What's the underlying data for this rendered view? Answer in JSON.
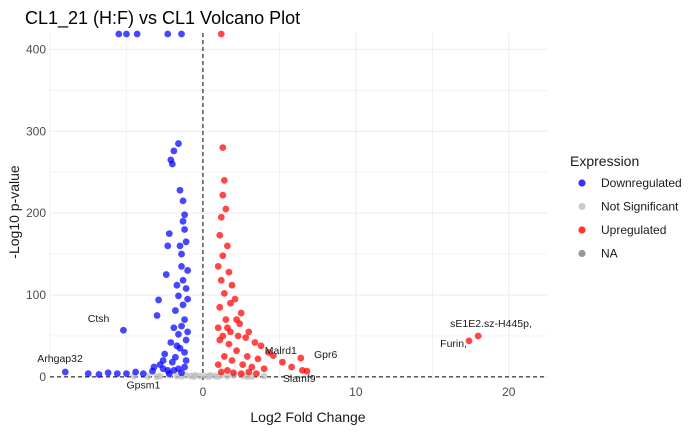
{
  "chart_data": {
    "type": "scatter",
    "title": "CL1_21 (H:F) vs CL1 Volcano Plot",
    "xlabel": "Log2 Fold Change",
    "ylabel": "-Log10 p-value",
    "xlim": [
      -10,
      22.5
    ],
    "ylim": [
      -5,
      420
    ],
    "xticks": [
      0,
      10,
      20
    ],
    "yticks": [
      0,
      100,
      200,
      300,
      400
    ],
    "grid": true,
    "vline": 0,
    "hline": 0,
    "legend": {
      "title": "Expression",
      "placement": "right",
      "entries": [
        {
          "label": "Downregulated",
          "color": "#0000ff"
        },
        {
          "label": "Not Significant",
          "color": "#bebebe"
        },
        {
          "label": "Upregulated",
          "color": "#ff0000"
        },
        {
          "label": "NA",
          "color": "#7f7f7f"
        }
      ]
    },
    "series": [
      {
        "name": "Downregulated",
        "color": "#0000ff",
        "points": [
          [
            -5.2,
            57
          ],
          [
            -9.0,
            6
          ],
          [
            -7.5,
            4
          ],
          [
            -6.8,
            3
          ],
          [
            -6.2,
            5
          ],
          [
            -5.6,
            4
          ],
          [
            -5.0,
            4
          ],
          [
            -4.4,
            6
          ],
          [
            -3.9,
            4
          ],
          [
            -3.3,
            7
          ],
          [
            -3.0,
            75
          ],
          [
            -2.9,
            94
          ],
          [
            -2.6,
            20
          ],
          [
            -2.4,
            125
          ],
          [
            -2.2,
            175
          ],
          [
            -2.3,
            160
          ],
          [
            -2.1,
            265
          ],
          [
            -2.0,
            260
          ],
          [
            -1.9,
            276
          ],
          [
            -1.6,
            285
          ],
          [
            -1.5,
            228
          ],
          [
            -1.3,
            215
          ],
          [
            -1.2,
            198
          ],
          [
            -1.5,
            160
          ],
          [
            -1.4,
            150
          ],
          [
            -1.2,
            180
          ],
          [
            -1.7,
            112
          ],
          [
            -1.6,
            99
          ],
          [
            -1.8,
            81
          ],
          [
            -1.4,
            135
          ],
          [
            -1.3,
            118
          ],
          [
            -1.1,
            108
          ],
          [
            -1.9,
            60
          ],
          [
            -1.6,
            52
          ],
          [
            -2.1,
            42
          ],
          [
            -2.5,
            28
          ],
          [
            -2.8,
            15
          ],
          [
            -3.2,
            12
          ],
          [
            -1.3,
            88
          ],
          [
            -1.2,
            70
          ],
          [
            -1.1,
            45
          ],
          [
            -1.5,
            35
          ],
          [
            -1.8,
            24
          ],
          [
            -2.0,
            18
          ],
          [
            -1.4,
            62
          ],
          [
            -1.2,
            30
          ],
          [
            -1.1,
            20
          ],
          [
            -1.7,
            38
          ],
          [
            -2.3,
            8
          ],
          [
            -2.6,
            10
          ],
          [
            -1.0,
            95
          ],
          [
            -1.0,
            130
          ],
          [
            -1.1,
            165
          ],
          [
            -1.3,
            190
          ],
          [
            -1.0,
            55
          ],
          [
            -1.2,
            12
          ],
          [
            -1.6,
            10
          ],
          [
            -1.9,
            8
          ],
          [
            -2.2,
            4
          ],
          [
            -1.4,
            5
          ],
          [
            -5.5,
            420
          ],
          [
            -5.0,
            420
          ],
          [
            -4.3,
            420
          ],
          [
            -2.3,
            420
          ],
          [
            -1.4,
            420
          ]
        ]
      },
      {
        "name": "Not Significant",
        "color": "#bebebe",
        "points": [
          [
            -4.5,
            1
          ],
          [
            -3.6,
            0.5
          ],
          [
            -2.8,
            1
          ],
          [
            -2.2,
            2
          ],
          [
            -1.7,
            1
          ],
          [
            -1.1,
            2
          ],
          [
            -0.8,
            1
          ],
          [
            -0.5,
            2
          ],
          [
            -0.2,
            1
          ],
          [
            0.2,
            1
          ],
          [
            0.5,
            2
          ],
          [
            0.8,
            1
          ],
          [
            1.2,
            2
          ],
          [
            1.6,
            1
          ],
          [
            2.0,
            2
          ],
          [
            2.6,
            1
          ],
          [
            3.2,
            0.5
          ],
          [
            4.0,
            1
          ],
          [
            -0.6,
            0.5
          ],
          [
            0.4,
            0.5
          ],
          [
            -1.4,
            0.5
          ],
          [
            1.0,
            0.5
          ],
          [
            -3.0,
            0.3
          ],
          [
            2.9,
            0.3
          ]
        ]
      },
      {
        "name": "Upregulated",
        "color": "#ff0000",
        "points": [
          [
            1.2,
            420
          ],
          [
            1.3,
            280
          ],
          [
            1.4,
            240
          ],
          [
            1.3,
            222
          ],
          [
            1.2,
            195
          ],
          [
            1.5,
            205
          ],
          [
            1.1,
            173
          ],
          [
            1.6,
            160
          ],
          [
            1.3,
            148
          ],
          [
            1.0,
            135
          ],
          [
            1.7,
            128
          ],
          [
            1.2,
            118
          ],
          [
            1.9,
            112
          ],
          [
            2.1,
            95
          ],
          [
            1.8,
            90
          ],
          [
            1.4,
            102
          ],
          [
            1.1,
            85
          ],
          [
            2.5,
            78
          ],
          [
            2.4,
            65
          ],
          [
            2.2,
            70
          ],
          [
            1.6,
            60
          ],
          [
            3.0,
            55
          ],
          [
            2.8,
            48
          ],
          [
            3.4,
            42
          ],
          [
            3.8,
            38
          ],
          [
            4.3,
            30
          ],
          [
            4.6,
            26
          ],
          [
            3.6,
            22
          ],
          [
            2.9,
            25
          ],
          [
            2.2,
            32
          ],
          [
            1.7,
            40
          ],
          [
            1.3,
            50
          ],
          [
            1.1,
            45
          ],
          [
            5.2,
            18
          ],
          [
            5.8,
            12
          ],
          [
            6.5,
            8
          ],
          [
            4.0,
            10
          ],
          [
            3.2,
            12
          ],
          [
            2.6,
            15
          ],
          [
            1.9,
            20
          ],
          [
            1.4,
            25
          ],
          [
            1.0,
            15
          ],
          [
            1.2,
            6
          ],
          [
            1.6,
            8
          ],
          [
            2.0,
            5
          ],
          [
            2.5,
            4
          ],
          [
            3.0,
            6
          ],
          [
            3.5,
            4
          ],
          [
            1.5,
            70
          ],
          [
            1.0,
            60
          ],
          [
            1.8,
            55
          ],
          [
            2.3,
            50
          ],
          [
            6.4,
            23
          ],
          [
            6.8,
            7
          ],
          [
            17.4,
            44
          ],
          [
            18.0,
            50
          ]
        ]
      },
      {
        "name": "NA",
        "color": "#7f7f7f",
        "points": []
      }
    ],
    "annotations": [
      {
        "text": "Ctsh",
        "x": -5.2,
        "y": 57
      },
      {
        "text": "Arhgap32",
        "x": -9.0,
        "y": 6
      },
      {
        "text": "Gpsm1",
        "x": -5.0,
        "y": 3
      },
      {
        "text": "Malrd1",
        "x": 6.4,
        "y": 23
      },
      {
        "text": "Gpr6",
        "x": 7.0,
        "y": 18
      },
      {
        "text": "Slamf9",
        "x": 6.8,
        "y": 7
      },
      {
        "text": "sE1E2.sz-H445p,",
        "x": 18.0,
        "y": 50
      },
      {
        "text": "Furin,",
        "x": 17.4,
        "y": 44
      }
    ]
  }
}
